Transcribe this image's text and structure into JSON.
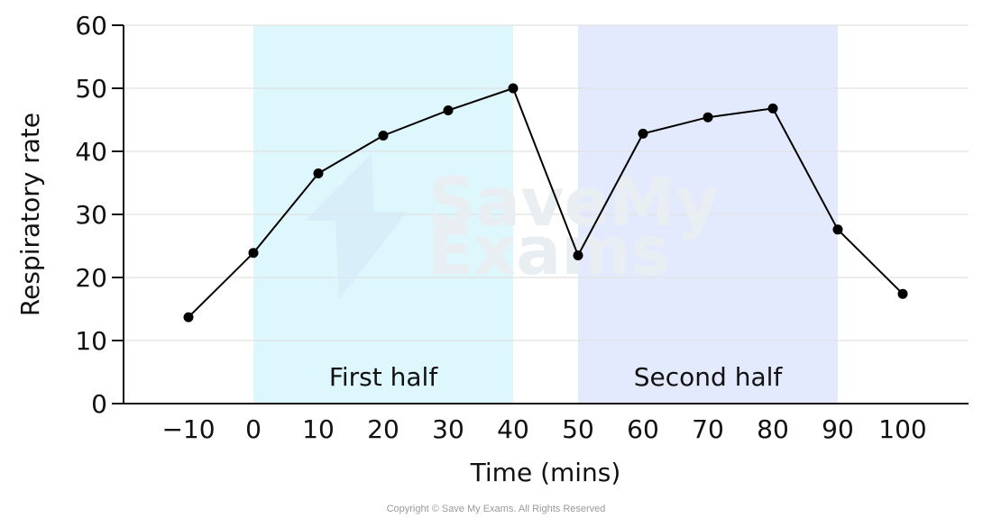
{
  "chart_data": {
    "type": "line",
    "xlabel": "Time (mins)",
    "ylabel": "Respiratory rate",
    "xlim": [
      -10,
      100
    ],
    "ylim": [
      0,
      60
    ],
    "x_ticks": [
      "−10",
      "0",
      "10",
      "20",
      "30",
      "40",
      "50",
      "60",
      "70",
      "80",
      "90",
      "100"
    ],
    "y_ticks": [
      "0",
      "10",
      "20",
      "30",
      "40",
      "50",
      "60"
    ],
    "grid": "horizontal",
    "series": [
      {
        "x": [
          -10,
          0,
          10,
          20,
          30,
          40,
          50,
          60,
          70,
          80,
          90,
          100
        ],
        "y": [
          13.7,
          23.9,
          36.5,
          42.5,
          46.5,
          50.0,
          23.5,
          42.8,
          45.4,
          46.8,
          27.6,
          17.4
        ],
        "color": "#000000"
      }
    ],
    "regions": [
      {
        "label": "First half",
        "x_start": 0,
        "x_end": 40,
        "color": "#def7fc"
      },
      {
        "label": "Second half",
        "x_start": 50,
        "x_end": 90,
        "color": "#e4eafd"
      }
    ]
  },
  "watermark": {
    "line1": "SaveMy",
    "line2": "Exams"
  },
  "copyright": "Copyright © Save My Exams. All Rights Reserved"
}
